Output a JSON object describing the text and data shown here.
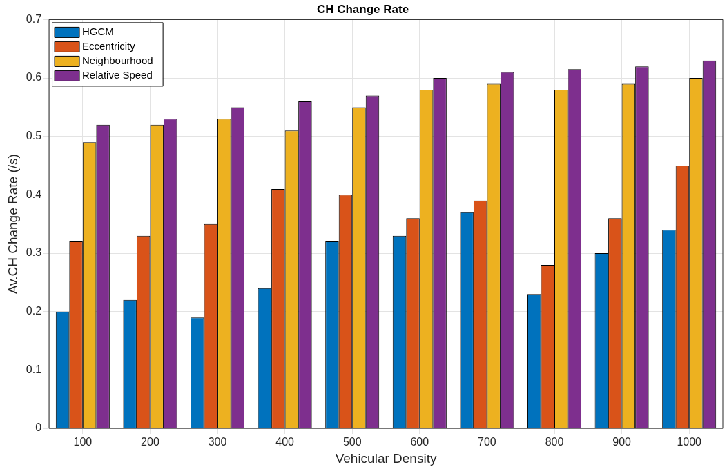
{
  "chart_data": {
    "type": "bar",
    "title": "CH Change Rate",
    "xlabel": "Vehicular Density",
    "ylabel": "Av.CH Change Rate (/s)",
    "categories": [
      "100",
      "200",
      "300",
      "400",
      "500",
      "600",
      "700",
      "800",
      "900",
      "1000"
    ],
    "series": [
      {
        "name": "HGCM",
        "color": "#0072bd",
        "values": [
          0.2,
          0.22,
          0.19,
          0.24,
          0.32,
          0.33,
          0.37,
          0.23,
          0.3,
          0.34
        ]
      },
      {
        "name": "Eccentricity",
        "color": "#d95319",
        "values": [
          0.32,
          0.33,
          0.35,
          0.41,
          0.4,
          0.36,
          0.39,
          0.28,
          0.36,
          0.45
        ]
      },
      {
        "name": "Neighbourhood",
        "color": "#edb120",
        "values": [
          0.49,
          0.52,
          0.53,
          0.51,
          0.55,
          0.58,
          0.59,
          0.58,
          0.59,
          0.6
        ]
      },
      {
        "name": "Relative Speed",
        "color": "#7e2f8e",
        "values": [
          0.52,
          0.53,
          0.55,
          0.56,
          0.57,
          0.6,
          0.61,
          0.615,
          0.62,
          0.63
        ]
      }
    ],
    "ylim": [
      0,
      0.7
    ],
    "yticks": [
      0,
      0.1,
      0.2,
      0.3,
      0.4,
      0.5,
      0.6,
      0.7
    ],
    "grid": true,
    "legend": "top left"
  }
}
